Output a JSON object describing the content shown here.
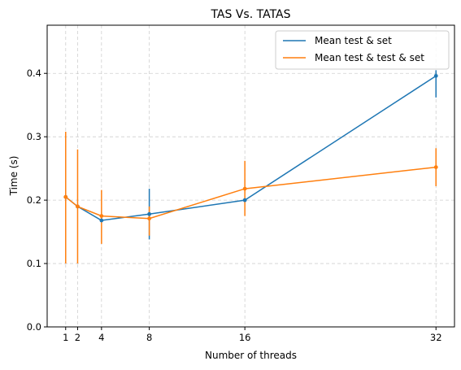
{
  "chart_data": {
    "type": "line",
    "title": "TAS Vs. TATAS",
    "xlabel": "Number of threads",
    "ylabel": "Time (s)",
    "x": [
      1,
      2,
      4,
      8,
      16,
      32
    ],
    "xticks": [
      "1",
      "2",
      "4",
      "8",
      "16",
      "32"
    ],
    "yticks": [
      "0.0",
      "0.1",
      "0.2",
      "0.3",
      "0.4"
    ],
    "xlim": [
      -0.55,
      33.55
    ],
    "ylim": [
      0,
      0.476
    ],
    "grid": true,
    "legend_position": "top-right",
    "series": [
      {
        "name": "Mean test & set",
        "color": "#1f77b4",
        "values": [
          0.205,
          0.19,
          0.168,
          0.178,
          0.2,
          0.396
        ],
        "err_low": [
          0.205,
          0.19,
          0.168,
          0.138,
          0.2,
          0.362
        ],
        "err_high": [
          0.205,
          0.19,
          0.168,
          0.218,
          0.2,
          0.405
        ]
      },
      {
        "name": "Mean test & test & set",
        "color": "#ff7f0e",
        "values": [
          0.205,
          0.19,
          0.175,
          0.171,
          0.218,
          0.252
        ],
        "err_low": [
          0.1,
          0.1,
          0.131,
          0.144,
          0.175,
          0.222
        ],
        "err_high": [
          0.308,
          0.28,
          0.216,
          0.19,
          0.262,
          0.282
        ]
      }
    ]
  }
}
